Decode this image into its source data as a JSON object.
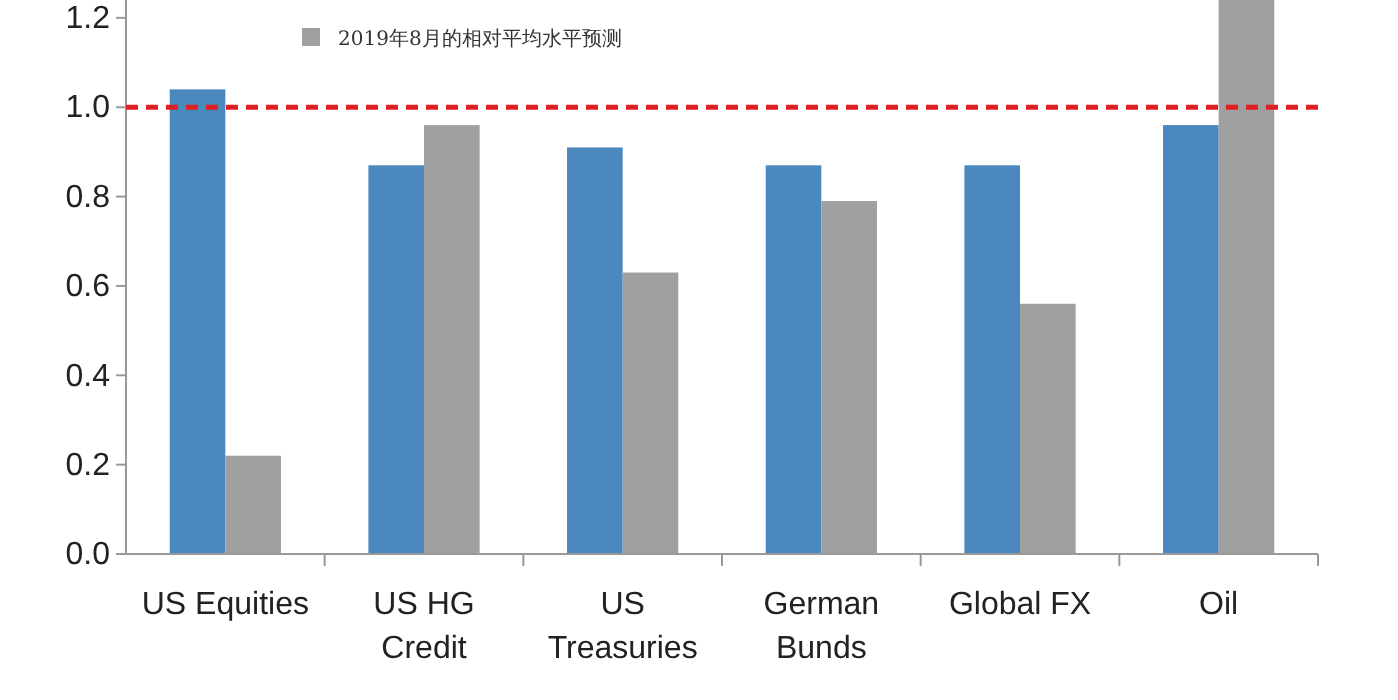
{
  "chart_data": {
    "type": "bar",
    "categories": [
      "US Equities",
      "US HG\nCredit",
      "US\nTreasuries",
      "German\nBunds",
      "Global FX",
      "Oil"
    ],
    "series": [
      {
        "color": "#4a88bd",
        "values": [
          1.04,
          0.87,
          0.91,
          0.87,
          0.87,
          0.96
        ]
      },
      {
        "name": "2019年8月的相对平均水平预测",
        "color": "#a0a0a0",
        "values": [
          0.22,
          0.96,
          0.63,
          0.79,
          0.56,
          1.24
        ]
      }
    ],
    "ylim": [
      0,
      1.24
    ],
    "yticks": [
      {
        "value": 0,
        "label": "0.0"
      },
      0.2,
      0.4,
      0.6,
      0.8,
      {
        "value": 1,
        "label": "1.0"
      },
      1.2
    ],
    "ref_lines": [
      {
        "axis": "y",
        "value": 1,
        "color": "#e02020",
        "line_style": "dashed"
      }
    ],
    "legend": "top",
    "grid": false
  }
}
